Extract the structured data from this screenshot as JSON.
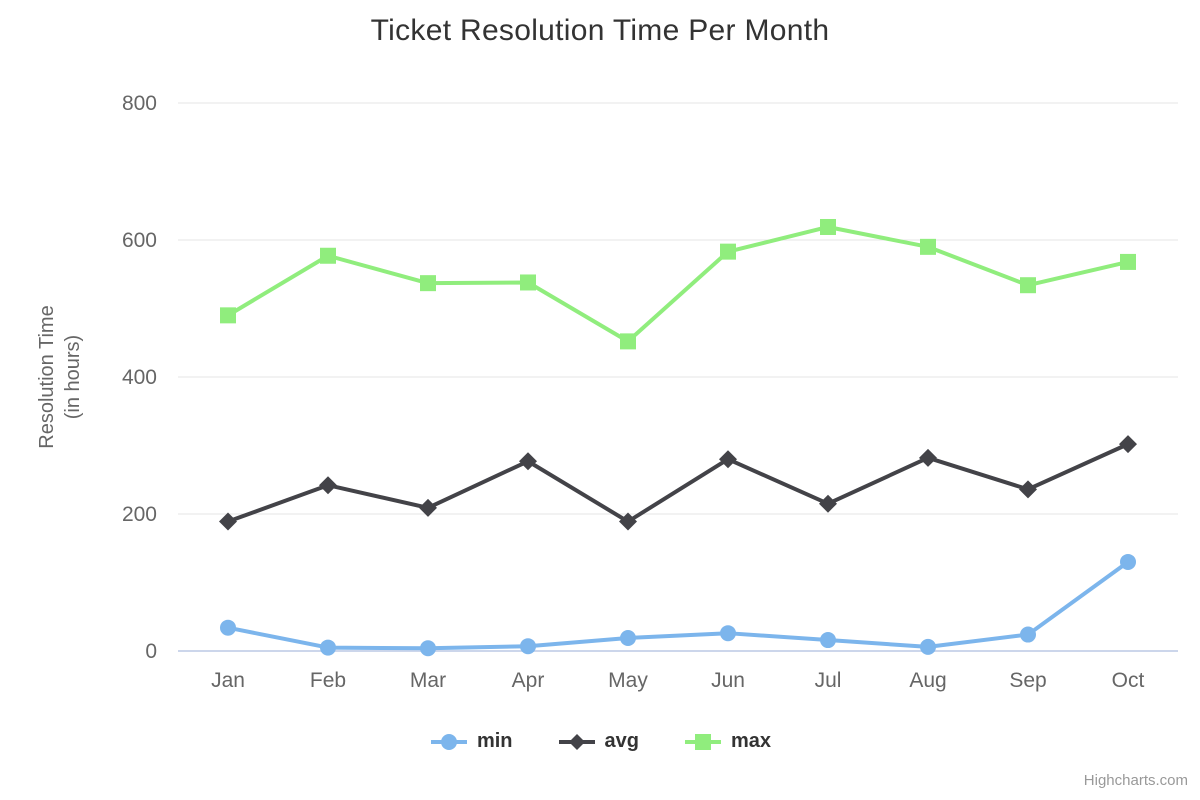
{
  "chart": {
    "yaxis_title_line1": "Resolution Time",
    "yaxis_title_line2": "(in hours)",
    "credits": "Highcharts.com"
  },
  "colors": {
    "min": "#7cb5ec",
    "avg": "#434348",
    "max": "#90ed7d",
    "grid": "#e6e6e6",
    "axis_line": "#ccd6eb",
    "title_text": "#333333",
    "label_text": "#666666",
    "legend_text": "#333333",
    "credits_text": "#999999",
    "background": "#ffffff"
  },
  "chart_data": {
    "type": "line",
    "title": "Ticket Resolution Time Per Month",
    "categories": [
      "Jan",
      "Feb",
      "Mar",
      "Apr",
      "May",
      "Jun",
      "Jul",
      "Aug",
      "Sep",
      "Oct"
    ],
    "series": [
      {
        "name": "min",
        "marker": "circle",
        "color": "#7cb5ec",
        "values": [
          34,
          5,
          4,
          7,
          19,
          26,
          16,
          6,
          24,
          130
        ]
      },
      {
        "name": "avg",
        "marker": "diamond",
        "color": "#434348",
        "values": [
          189,
          242,
          209,
          277,
          189,
          280,
          215,
          282,
          236,
          302
        ]
      },
      {
        "name": "max",
        "marker": "square",
        "color": "#90ed7d",
        "values": [
          490,
          577,
          537,
          538,
          452,
          583,
          619,
          590,
          534,
          568
        ]
      }
    ],
    "xlabel": "",
    "ylabel": "Resolution Time (in hours)",
    "ylim": [
      0,
      800
    ],
    "yticks": [
      0,
      200,
      400,
      600,
      800
    ],
    "grid": "horizontal",
    "legend_position": "bottom"
  }
}
